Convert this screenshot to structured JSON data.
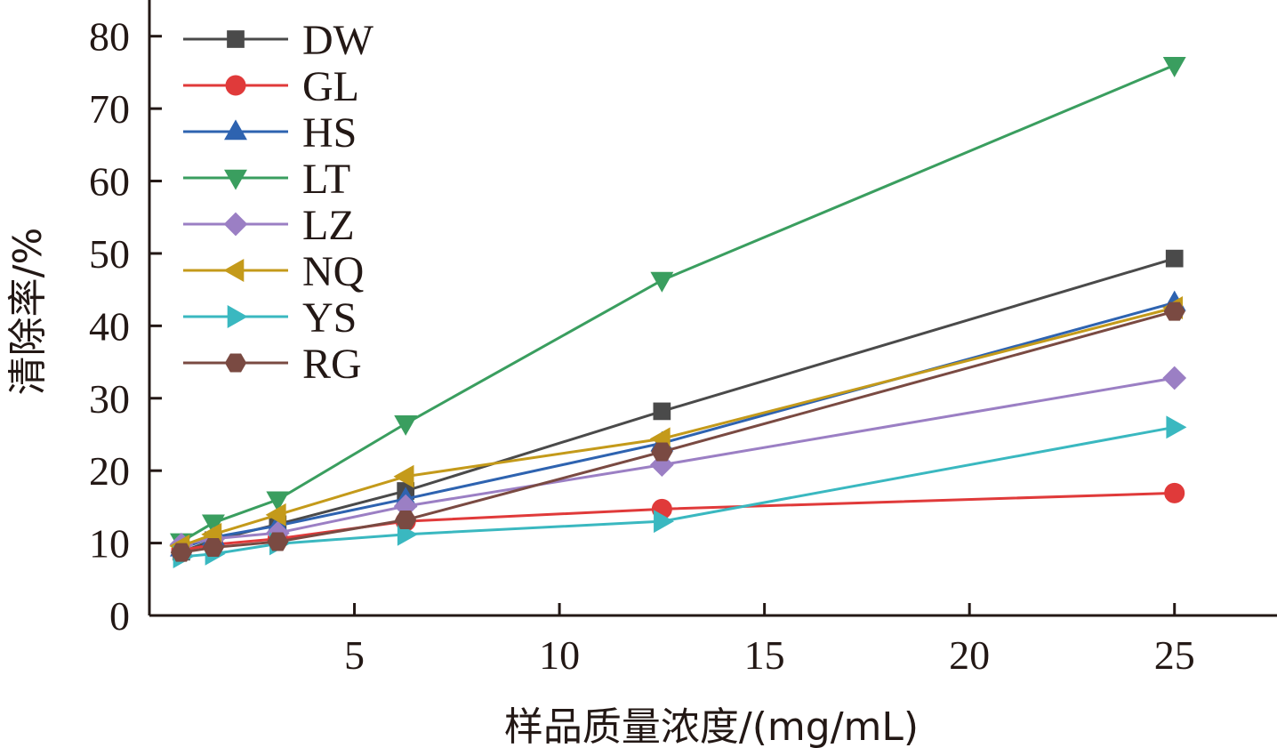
{
  "chart_data": {
    "type": "line",
    "xlabel": "样品质量浓度/(mg/mL)",
    "ylabel": "清除率/%",
    "xlim": [
      0,
      27.5
    ],
    "ylim": [
      0,
      85
    ],
    "xticks": [
      5,
      10,
      15,
      20,
      25
    ],
    "yticks": [
      0,
      10,
      20,
      30,
      40,
      50,
      60,
      70,
      80
    ],
    "grid": false,
    "legend_position": "top-left",
    "x": [
      0.78,
      1.56,
      3.13,
      6.25,
      12.5,
      25
    ],
    "series": [
      {
        "name": "DW",
        "color": "#4a4a4a",
        "marker": "square",
        "values": [
          8.8,
          10.4,
          12.6,
          17.2,
          28.2,
          49.3
        ]
      },
      {
        "name": "GL",
        "color": "#e03a3a",
        "marker": "circle",
        "values": [
          9.0,
          9.8,
          10.6,
          13.0,
          14.7,
          16.9
        ]
      },
      {
        "name": "HS",
        "color": "#2e63b0",
        "marker": "triangle-up",
        "values": [
          9.3,
          10.8,
          12.4,
          16.1,
          23.8,
          43.2
        ]
      },
      {
        "name": "LT",
        "color": "#3a9e5f",
        "marker": "triangle-down",
        "values": [
          10.2,
          12.8,
          16.0,
          26.5,
          46.3,
          76.0
        ]
      },
      {
        "name": "LZ",
        "color": "#9b7fc4",
        "marker": "diamond",
        "values": [
          9.8,
          10.6,
          11.4,
          15.1,
          20.8,
          32.8
        ]
      },
      {
        "name": "NQ",
        "color": "#c49a1a",
        "marker": "triangle-left",
        "values": [
          9.6,
          11.2,
          13.9,
          19.2,
          24.4,
          42.5
        ]
      },
      {
        "name": "YS",
        "color": "#3ab8c0",
        "marker": "triangle-right",
        "values": [
          8.1,
          8.5,
          9.9,
          11.2,
          13.0,
          26.0
        ]
      },
      {
        "name": "RG",
        "color": "#7a4a42",
        "marker": "hexagon",
        "values": [
          8.7,
          9.4,
          10.2,
          13.2,
          22.6,
          42.0
        ]
      }
    ]
  }
}
